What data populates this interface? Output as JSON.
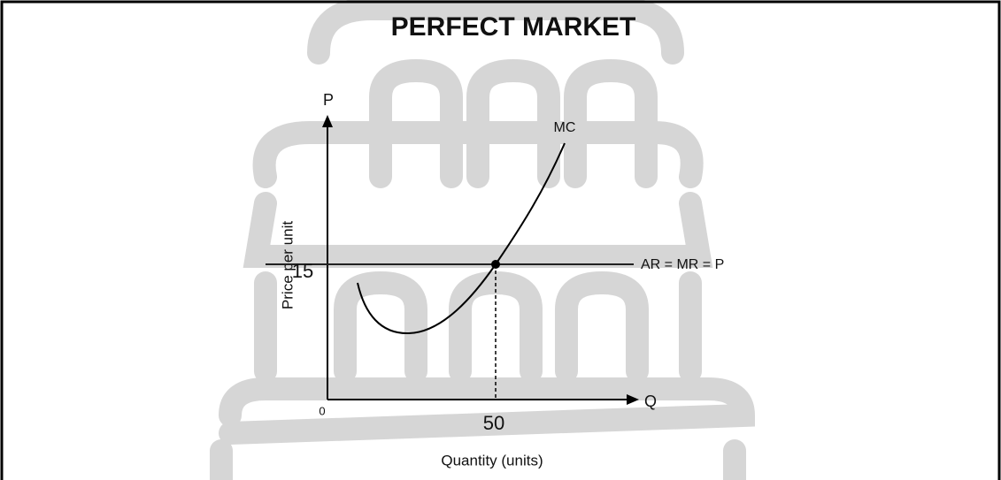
{
  "title": "PERFECT MARKET",
  "axes": {
    "y_letter": "P",
    "x_letter": "Q",
    "y_label": "Price per unit",
    "x_label": "Quantity (units)",
    "origin": "0"
  },
  "markers": {
    "price": "15",
    "quantity": "50"
  },
  "curves": {
    "mc": "MC",
    "demand": "AR = MR = P"
  }
}
